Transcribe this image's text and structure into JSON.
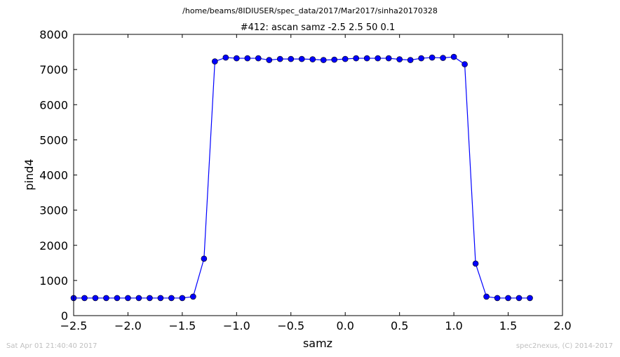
{
  "header": {
    "file_path": "/home/beams/8IDIUSER/spec_data/2017/Mar2017/sinha20170328"
  },
  "footer": {
    "timestamp": "Sat Apr 01 21:40:40 2017",
    "credit": "spec2nexus, (C) 2014-2017"
  },
  "chart_data": {
    "type": "line",
    "title": "#412: ascan  samz -2.5 2.5  50 0.1",
    "xlabel": "samz",
    "ylabel": "pind4",
    "xlim": [
      -2.5,
      2.0
    ],
    "ylim": [
      0,
      8000
    ],
    "xticks": [
      "−2.5",
      "−2.0",
      "−1.5",
      "−1.0",
      "−0.5",
      "0.0",
      "0.5",
      "1.0",
      "1.5",
      "2.0"
    ],
    "yticks": [
      "0",
      "1000",
      "2000",
      "3000",
      "4000",
      "5000",
      "6000",
      "7000",
      "8000"
    ],
    "grid": false,
    "color": "#0000ff",
    "marker": "circle",
    "x": [
      -2.5,
      -2.4,
      -2.3,
      -2.2,
      -2.1,
      -2.0,
      -1.9,
      -1.8,
      -1.7,
      -1.6,
      -1.5,
      -1.4,
      -1.3,
      -1.2,
      -1.1,
      -1.0,
      -0.9,
      -0.8,
      -0.7,
      -0.6,
      -0.5,
      -0.4,
      -0.3,
      -0.2,
      -0.1,
      0.0,
      0.1,
      0.2,
      0.3,
      0.4,
      0.5,
      0.6,
      0.7,
      0.8,
      0.9,
      1.0,
      1.1,
      1.2,
      1.3,
      1.4,
      1.5,
      1.6,
      1.7
    ],
    "y": [
      500,
      500,
      500,
      500,
      500,
      500,
      500,
      500,
      500,
      500,
      500,
      540,
      1620,
      7230,
      7340,
      7320,
      7320,
      7320,
      7270,
      7300,
      7300,
      7300,
      7290,
      7270,
      7280,
      7300,
      7320,
      7320,
      7320,
      7320,
      7290,
      7270,
      7320,
      7340,
      7330,
      7360,
      7150,
      1480,
      540,
      500,
      500,
      500,
      500
    ]
  }
}
